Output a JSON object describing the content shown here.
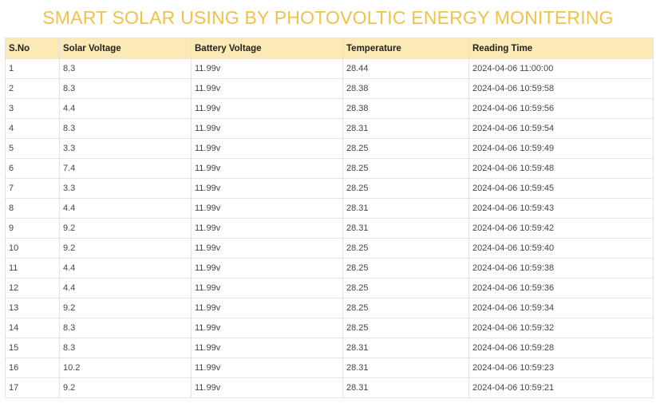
{
  "page": {
    "title": "SMART SOLAR USING BY PHOTOVOLTIC ENERGY MONITERING"
  },
  "colors": {
    "title": "#f0c24a",
    "header_bg": "#fbeab6",
    "border": "#e3e3e3"
  },
  "table": {
    "columns": [
      "S.No",
      "Solar Voltage",
      "Battery Voltage",
      "Temperature",
      "Reading Time"
    ],
    "rows": [
      [
        "1",
        "8.3",
        "11.99v",
        "28.44",
        "2024-04-06 11:00:00"
      ],
      [
        "2",
        "8.3",
        "11.99v",
        "28.38",
        "2024-04-06 10:59:58"
      ],
      [
        "3",
        "4.4",
        "11.99v",
        "28.38",
        "2024-04-06 10:59:56"
      ],
      [
        "4",
        "8.3",
        "11.99v",
        "28.31",
        "2024-04-06 10:59:54"
      ],
      [
        "5",
        "3.3",
        "11.99v",
        "28.25",
        "2024-04-06 10:59:49"
      ],
      [
        "6",
        "7.4",
        "11.99v",
        "28.25",
        "2024-04-06 10:59:48"
      ],
      [
        "7",
        "3.3",
        "11.99v",
        "28.25",
        "2024-04-06 10:59:45"
      ],
      [
        "8",
        "4.4",
        "11.99v",
        "28.31",
        "2024-04-06 10:59:43"
      ],
      [
        "9",
        "9.2",
        "11.99v",
        "28.31",
        "2024-04-06 10:59:42"
      ],
      [
        "10",
        "9.2",
        "11.99v",
        "28.25",
        "2024-04-06 10:59:40"
      ],
      [
        "11",
        "4.4",
        "11.99v",
        "28.25",
        "2024-04-06 10:59:38"
      ],
      [
        "12",
        "4.4",
        "11.99v",
        "28.25",
        "2024-04-06 10:59:36"
      ],
      [
        "13",
        "9.2",
        "11.99v",
        "28.25",
        "2024-04-06 10:59:34"
      ],
      [
        "14",
        "8.3",
        "11.99v",
        "28.25",
        "2024-04-06 10:59:32"
      ],
      [
        "15",
        "8.3",
        "11.99v",
        "28.31",
        "2024-04-06 10:59:28"
      ],
      [
        "16",
        "10.2",
        "11.99v",
        "28.31",
        "2024-04-06 10:59:23"
      ],
      [
        "17",
        "9.2",
        "11.99v",
        "28.31",
        "2024-04-06 10:59:21"
      ]
    ]
  }
}
